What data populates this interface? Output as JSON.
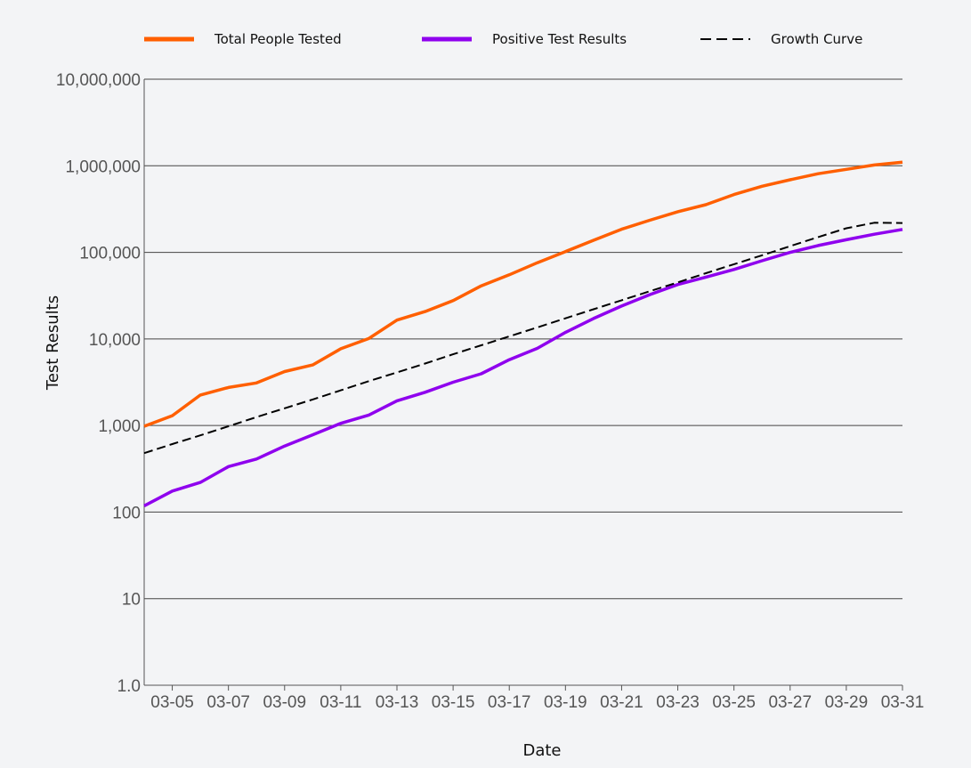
{
  "chart_data": {
    "type": "line",
    "title": "",
    "xlabel": "Date",
    "ylabel": "Test Results",
    "y_scale": "log",
    "ylim": [
      1,
      10000000
    ],
    "y_ticks": [
      1,
      10,
      100,
      1000,
      10000,
      100000,
      1000000,
      10000000
    ],
    "y_tick_labels": [
      "1.0",
      "10",
      "100",
      "1,000",
      "10,000",
      "100,000",
      "1,000,000",
      "10,000,000"
    ],
    "x": [
      "03-04",
      "03-05",
      "03-06",
      "03-07",
      "03-08",
      "03-09",
      "03-10",
      "03-11",
      "03-12",
      "03-13",
      "03-14",
      "03-15",
      "03-16",
      "03-17",
      "03-18",
      "03-19",
      "03-20",
      "03-21",
      "03-22",
      "03-23",
      "03-24",
      "03-25",
      "03-26",
      "03-27",
      "03-28",
      "03-29",
      "03-30",
      "03-31"
    ],
    "x_tick_labels": [
      "03-05",
      "03-07",
      "03-09",
      "03-11",
      "03-13",
      "03-15",
      "03-17",
      "03-19",
      "03-21",
      "03-23",
      "03-25",
      "03-27",
      "03-29",
      "03-31"
    ],
    "grid": true,
    "legend_position": "top",
    "series": [
      {
        "name": "Total People Tested",
        "color": "#ff5f00",
        "style": "solid",
        "values": [
          980,
          1300,
          2250,
          2750,
          3100,
          4200,
          5000,
          7700,
          10100,
          16500,
          20700,
          27700,
          41000,
          55000,
          76000,
          102000,
          138000,
          185000,
          235000,
          295000,
          355000,
          465000,
          580000,
          690000,
          810000,
          910000,
          1020000,
          1100000
        ]
      },
      {
        "name": "Positive Test Results",
        "color": "#8f00ee",
        "style": "solid",
        "values": [
          118,
          175,
          220,
          335,
          410,
          580,
          780,
          1060,
          1320,
          1930,
          2420,
          3160,
          3960,
          5750,
          7800,
          11900,
          17200,
          24000,
          32500,
          42500,
          51700,
          63500,
          80000,
          100000,
          120000,
          140000,
          162000,
          184000
        ]
      },
      {
        "name": "Growth Curve",
        "color": "#000000",
        "style": "dashed",
        "values": [
          480,
          610,
          770,
          980,
          1250,
          1580,
          2000,
          2550,
          3250,
          4100,
          5200,
          6650,
          8450,
          10700,
          13600,
          17300,
          22000,
          28000,
          35500,
          45000,
          57500,
          73000,
          92500,
          118000,
          150000,
          190000,
          220000,
          218000
        ]
      }
    ]
  }
}
